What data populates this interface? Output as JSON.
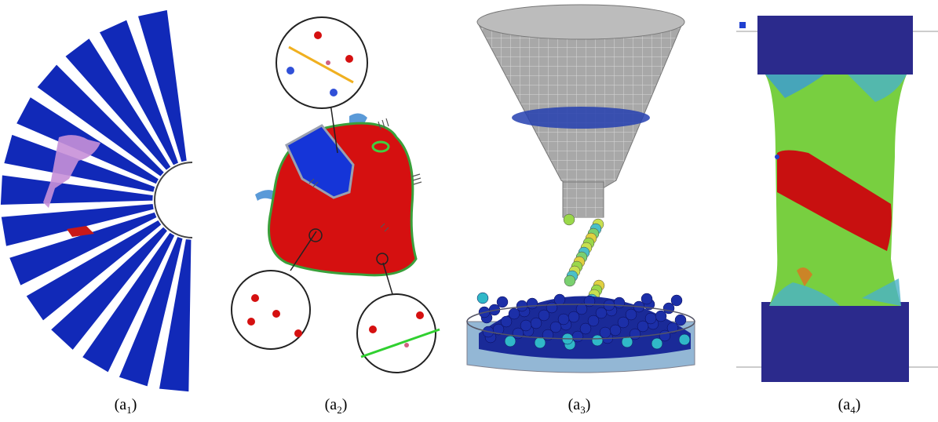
{
  "figure": {
    "panels": [
      {
        "id": "a1",
        "caption": {
          "prefix": "(a",
          "subscript": "1",
          "suffix": ")"
        },
        "icon": "fan-blade-fracture-simulation"
      },
      {
        "id": "a2",
        "caption": {
          "prefix": "(a",
          "subscript": "2",
          "suffix": ")"
        },
        "icon": "particle-heart-simulation"
      },
      {
        "id": "a3",
        "caption": {
          "prefix": "(a",
          "subscript": "3",
          "suffix": ")"
        },
        "icon": "hopper-granular-flow-simulation"
      },
      {
        "id": "a4",
        "caption": {
          "prefix": "(a",
          "subscript": "4",
          "suffix": ")"
        },
        "icon": "tensile-specimen-shear-band-simulation"
      }
    ],
    "colors": {
      "deep_blue": "#1a2fb8",
      "red": "#d40f0f",
      "green": "#6fd23a",
      "grey_mesh": "#9a9a9a",
      "navy": "#2b2a8c"
    }
  }
}
